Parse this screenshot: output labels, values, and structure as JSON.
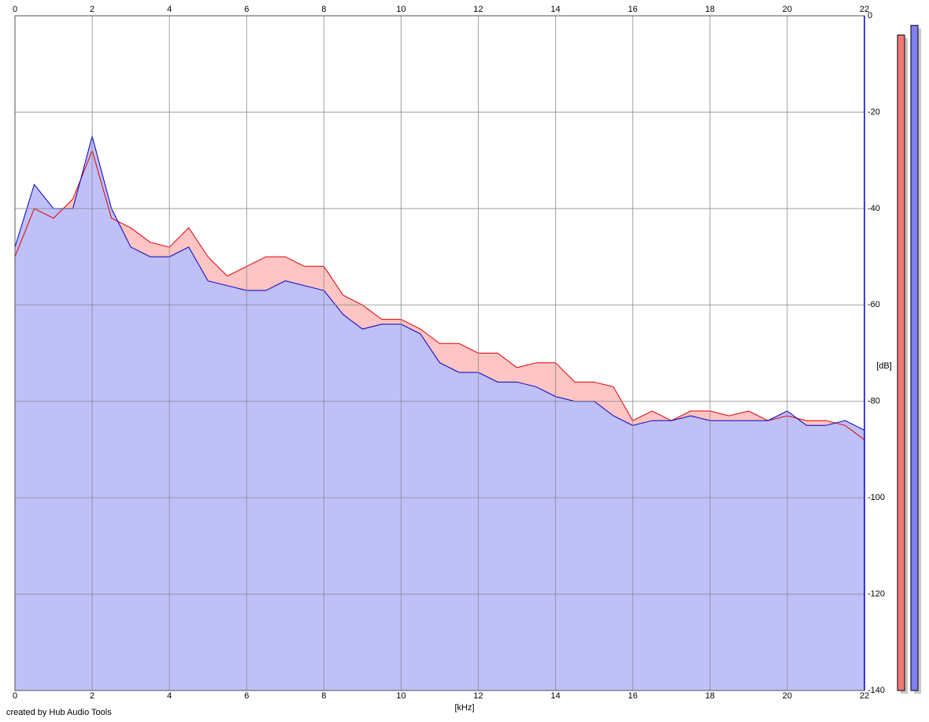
{
  "chart_data": {
    "type": "area",
    "xlabel": "[kHz]",
    "ylabel": "[dB]",
    "footer": "created by Hub Audio Tools",
    "x": [
      0,
      0.5,
      1,
      1.5,
      2,
      2.5,
      3,
      3.5,
      4,
      4.5,
      5,
      5.5,
      6,
      6.5,
      7,
      7.5,
      8,
      8.5,
      9,
      9.5,
      10,
      10.5,
      11,
      11.5,
      12,
      12.5,
      13,
      13.5,
      14,
      14.5,
      15,
      15.5,
      16,
      16.5,
      17,
      17.5,
      18,
      18.5,
      19,
      19.5,
      20,
      20.5,
      21,
      21.5,
      22
    ],
    "series": [
      {
        "color": "#e00000",
        "fill": "#ffc4c4",
        "values": [
          -50,
          -40,
          -42,
          -38,
          -28,
          -42,
          -44,
          -47,
          -48,
          -44,
          -50,
          -54,
          -52,
          -50,
          -50,
          -52,
          -52,
          -58,
          -60,
          -63,
          -63,
          -65,
          -68,
          -68,
          -70,
          -70,
          -73,
          -72,
          -72,
          -76,
          -76,
          -77,
          -84,
          -82,
          -84,
          -82,
          -82,
          -83,
          -82,
          -84,
          -83,
          -84,
          -84,
          -85,
          -88
        ]
      },
      {
        "color": "#0000c0",
        "fill": "#c0c0f8",
        "values": [
          -48,
          -35,
          -40,
          -40,
          -25,
          -40,
          -48,
          -50,
          -50,
          -48,
          -55,
          -56,
          -57,
          -57,
          -55,
          -56,
          -57,
          -62,
          -65,
          -64,
          -64,
          -66,
          -72,
          -74,
          -74,
          -76,
          -76,
          -77,
          -79,
          -80,
          -80,
          -83,
          -85,
          -84,
          -84,
          -83,
          -84,
          -84,
          -84,
          -84,
          -82,
          -85,
          -85,
          -84,
          -86
        ]
      }
    ],
    "meters": [
      {
        "color": "#f07878",
        "value": -4
      },
      {
        "color": "#8080f0",
        "value": -2
      }
    ],
    "xlim": [
      0,
      22
    ],
    "xticks": [
      0,
      2,
      4,
      6,
      8,
      10,
      12,
      14,
      16,
      18,
      20,
      22
    ],
    "ylim": [
      -140,
      0
    ],
    "yticks": [
      0,
      -20,
      -40,
      -60,
      -80,
      -100,
      -120,
      -140
    ],
    "grid": true
  }
}
